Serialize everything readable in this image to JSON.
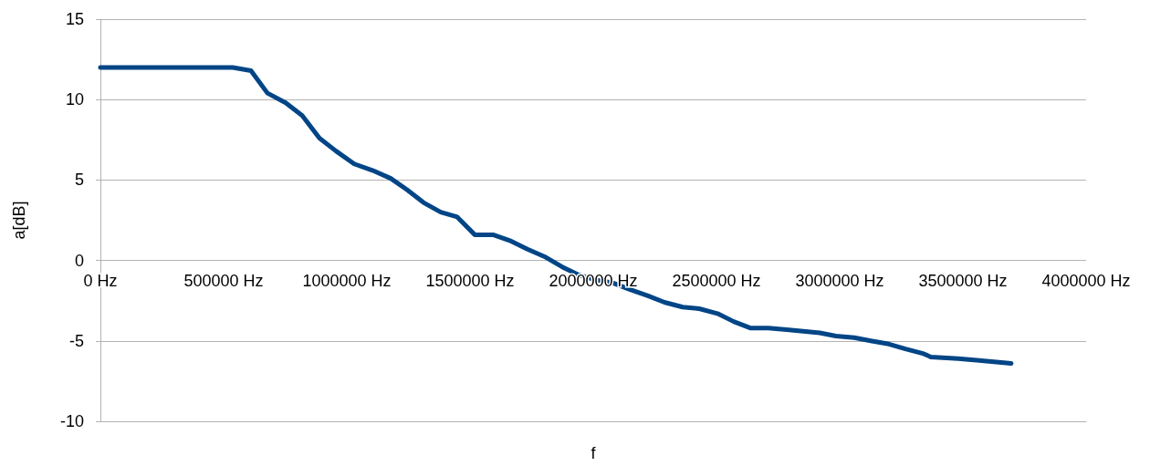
{
  "chart_data": {
    "type": "line",
    "xlabel": "f",
    "ylabel": "a[dB]",
    "x": [
      0,
      537000,
      611000,
      678000,
      752000,
      819000,
      889000,
      956000,
      1030000,
      1104000,
      1178000,
      1244000,
      1311000,
      1381000,
      1448000,
      1519000,
      1593000,
      1667000,
      1733000,
      1807000,
      1874000,
      1941000,
      2007000,
      2081000,
      2148000,
      2222000,
      2289000,
      2363000,
      2430000,
      2504000,
      2570000,
      2637000,
      2711000,
      2785000,
      2852000,
      2919000,
      2985000,
      3059000,
      3126000,
      3200000,
      3267000,
      3341000,
      3370000,
      3481000,
      3556000,
      3696000
    ],
    "series": [
      {
        "color": "#004586",
        "values": [
          12.0,
          12.0,
          11.8,
          10.4,
          9.8,
          9.0,
          7.6,
          6.8,
          6.0,
          5.6,
          5.1,
          4.4,
          3.6,
          3.0,
          2.7,
          1.6,
          1.6,
          1.2,
          0.7,
          0.2,
          -0.4,
          -0.9,
          -1.2,
          -1.4,
          -1.8,
          -2.2,
          -2.6,
          -2.9,
          -3.0,
          -3.3,
          -3.8,
          -4.2,
          -4.2,
          -4.3,
          -4.4,
          -4.5,
          -4.7,
          -4.8,
          -5.0,
          -5.2,
          -5.5,
          -5.8,
          -6.0,
          -6.1,
          -6.2,
          -6.4
        ]
      }
    ],
    "xlim": [
      0,
      4000000
    ],
    "xticks": [
      {
        "value": 0,
        "label": "0 Hz"
      },
      {
        "value": 500000,
        "label": "500000 Hz"
      },
      {
        "value": 1000000,
        "label": "1000000 Hz"
      },
      {
        "value": 1500000,
        "label": "1500000 Hz"
      },
      {
        "value": 2000000,
        "label": "2000000 Hz"
      },
      {
        "value": 2500000,
        "label": "2500000 Hz"
      },
      {
        "value": 3000000,
        "label": "3000000 Hz"
      },
      {
        "value": 3500000,
        "label": "3500000 Hz"
      },
      {
        "value": 4000000,
        "label": "4000000 Hz"
      }
    ],
    "ylim": [
      -10,
      15
    ],
    "yticks": [
      -10,
      -5,
      0,
      5,
      10,
      15
    ],
    "grid": "y",
    "marker": "none",
    "line_style": "solid"
  }
}
